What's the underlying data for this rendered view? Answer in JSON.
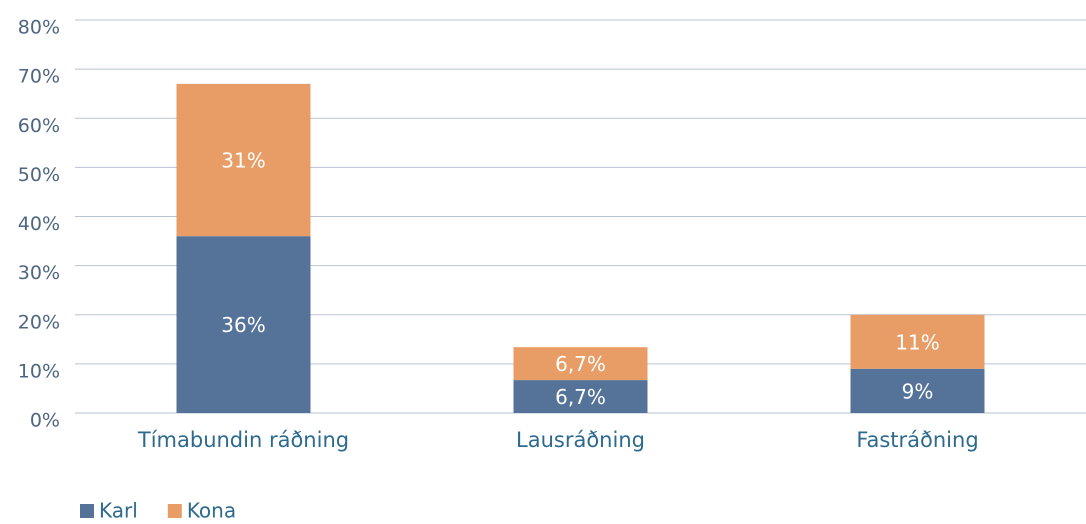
{
  "chart_data": {
    "type": "stacked_bar",
    "categories": [
      "Tímabundin ráðning",
      "Lausráðning",
      "Fastráðning"
    ],
    "series": [
      {
        "name": "Karl",
        "color": "#557399",
        "values": [
          36,
          6.7,
          9
        ],
        "value_labels": [
          "36%",
          "6,7%",
          "9%"
        ]
      },
      {
        "name": "Kona",
        "color": "#e89d66",
        "values": [
          31,
          6.7,
          11
        ],
        "value_labels": [
          "31%",
          "6,7%",
          "11%"
        ]
      }
    ],
    "ylim": [
      0,
      80
    ],
    "yticks": [
      {
        "value": 0,
        "label": "0%"
      },
      {
        "value": 10,
        "label": "10%"
      },
      {
        "value": 20,
        "label": "20%"
      },
      {
        "value": 30,
        "label": "30%"
      },
      {
        "value": 40,
        "label": "40%"
      },
      {
        "value": 50,
        "label": "50%"
      },
      {
        "value": 60,
        "label": "60%"
      },
      {
        "value": 70,
        "label": "70%"
      },
      {
        "value": 80,
        "label": "80%"
      }
    ],
    "grid": true,
    "legend": "bottom-left"
  }
}
